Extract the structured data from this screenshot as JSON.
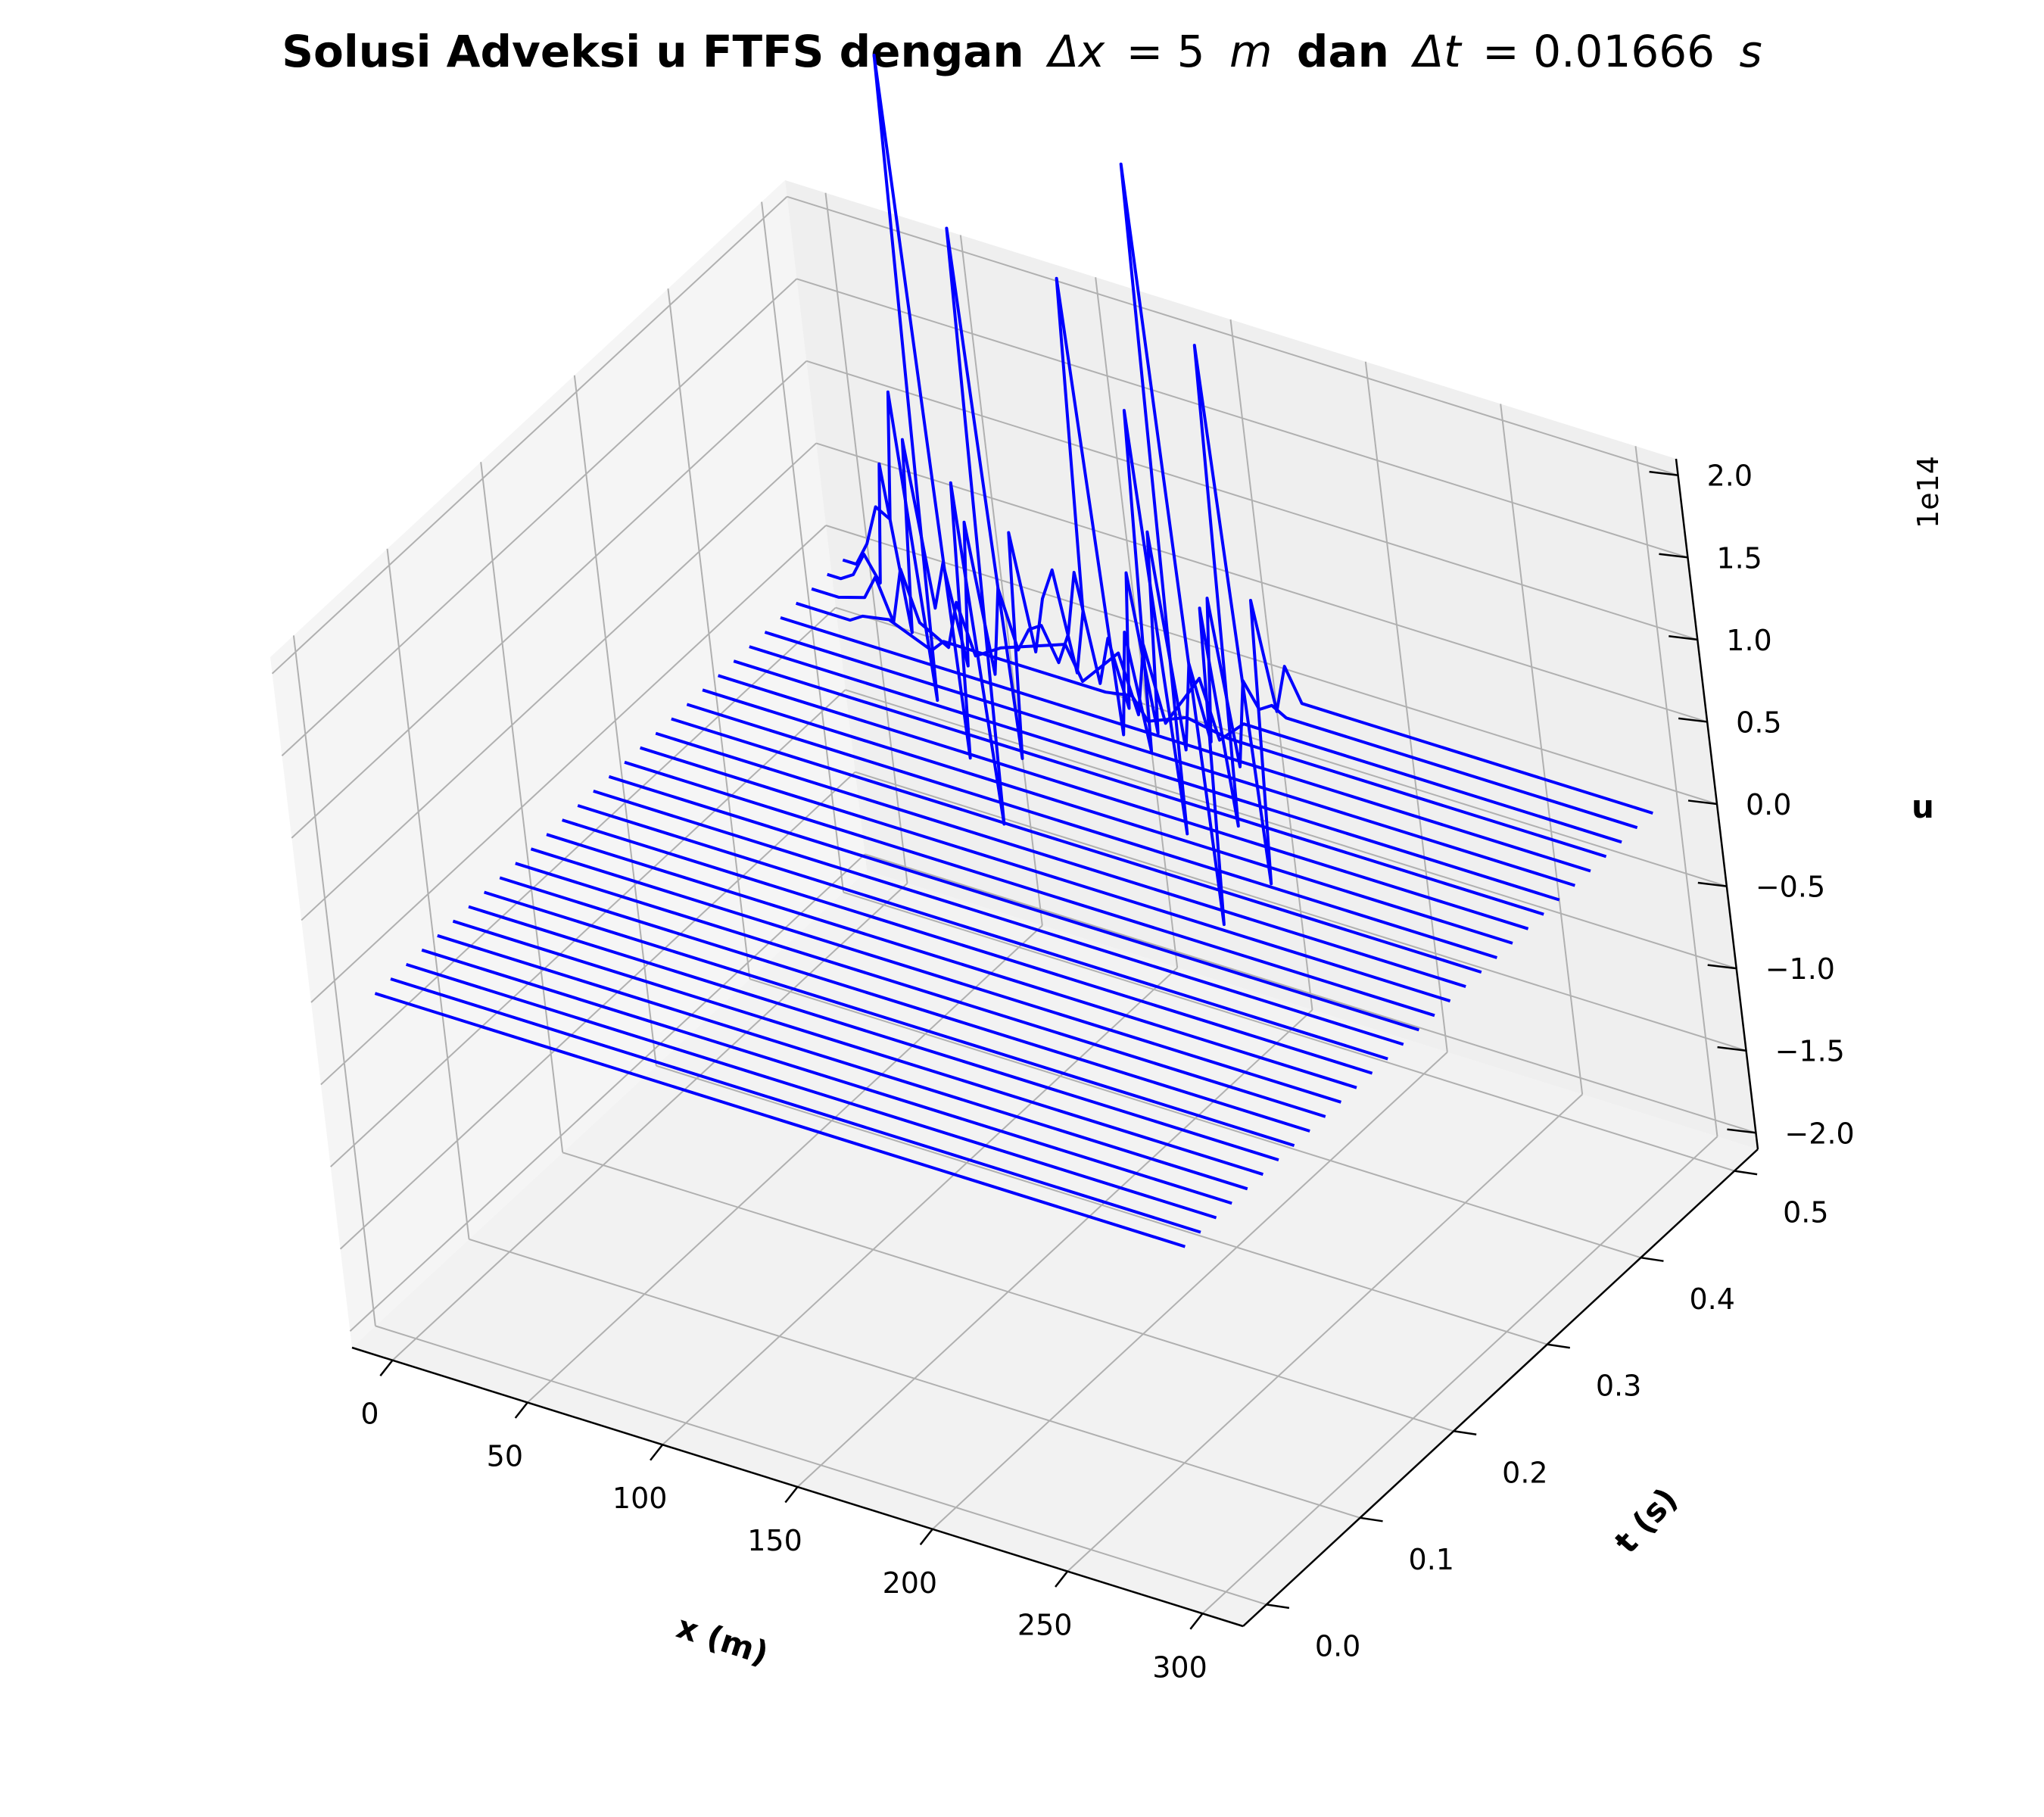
{
  "chart_data": {
    "type": "line3d",
    "title": {
      "bold_part": "Solusi Adveksi u FTFS dengan",
      "dx_symbol": "Δx",
      "dx_value": "= 5",
      "dx_unit": "m",
      "connector": "dan",
      "dt_symbol": "Δt",
      "dt_value": "= 0.01666",
      "dt_unit": "s"
    },
    "xlabel": "x (m)",
    "ylabel": "t (s)",
    "zlabel": "u",
    "z_offset_label": "1e14",
    "xlim": [
      -15,
      315
    ],
    "ylim": [
      -0.025,
      0.525
    ],
    "zlim": [
      -2.1,
      2.1
    ],
    "x_ticks": [
      "0",
      "50",
      "100",
      "150",
      "200",
      "250",
      "300"
    ],
    "t_ticks": [
      "0.0",
      "0.1",
      "0.2",
      "0.3",
      "0.4",
      "0.5"
    ],
    "z_ticks": [
      "−2.0",
      "−1.5",
      "−1.0",
      "−0.5",
      "0.0",
      "0.5",
      "1.0",
      "1.5",
      "2.0"
    ],
    "grid": true,
    "line_color": "#0000ff",
    "x_range": [
      0,
      300
    ],
    "dx": 5,
    "dt": 0.01666,
    "n_time_levels": 31,
    "baseline_u": 0,
    "unstable_profiles": [
      {
        "t": 0.5,
        "points": [
          [
            0,
            0.0
          ],
          [
            5,
            0.0
          ],
          [
            10,
            0.15
          ],
          [
            15,
            0.4
          ],
          [
            20,
            0.35
          ],
          [
            25,
            1.15
          ],
          [
            30,
            -0.7
          ],
          [
            35,
            3.25
          ],
          [
            40,
            -1.0
          ],
          [
            45,
            0.7
          ],
          [
            50,
            -1.35
          ],
          [
            55,
            2.3
          ],
          [
            60,
            -0.9
          ],
          [
            65,
            0.5
          ],
          [
            70,
            -0.2
          ],
          [
            75,
            0.15
          ],
          [
            80,
            0.35
          ],
          [
            85,
            -0.25
          ],
          [
            90,
            0.15
          ],
          [
            95,
            2.2
          ],
          [
            100,
            -0.55
          ],
          [
            105,
            0.1
          ],
          [
            110,
            -0.6
          ],
          [
            115,
            1.5
          ],
          [
            120,
            -1.05
          ],
          [
            125,
            3.05
          ],
          [
            130,
            -1.55
          ],
          [
            135,
            0.4
          ],
          [
            140,
            -0.9
          ],
          [
            145,
            2.05
          ],
          [
            150,
            -1.2
          ],
          [
            155,
            0.55
          ],
          [
            160,
            -0.1
          ],
          [
            165,
            0.2
          ],
          [
            170,
            0.0
          ]
        ]
      },
      {
        "t": 0.483,
        "points": [
          [
            0,
            0.0
          ],
          [
            5,
            0.0
          ],
          [
            10,
            0.05
          ],
          [
            15,
            0.2
          ],
          [
            20,
            0.05
          ],
          [
            25,
            0.8
          ],
          [
            30,
            -0.2
          ],
          [
            35,
            1.0
          ],
          [
            40,
            0.0
          ],
          [
            45,
            0.3
          ],
          [
            50,
            -0.3
          ],
          [
            55,
            0.6
          ],
          [
            60,
            -0.3
          ],
          [
            65,
            0.25
          ],
          [
            70,
            -0.1
          ],
          [
            75,
            0.05
          ],
          [
            80,
            0.1
          ],
          [
            85,
            -0.1
          ],
          [
            90,
            0.1
          ],
          [
            95,
            0.5
          ],
          [
            100,
            -0.15
          ],
          [
            105,
            0.15
          ],
          [
            110,
            -0.25
          ],
          [
            115,
            0.6
          ],
          [
            120,
            -0.35
          ],
          [
            125,
            0.9
          ],
          [
            130,
            -0.4
          ],
          [
            135,
            0.15
          ],
          [
            140,
            -0.3
          ],
          [
            145,
            0.6
          ],
          [
            150,
            -0.4
          ],
          [
            155,
            0.15
          ],
          [
            160,
            0.0
          ],
          [
            165,
            0.05
          ],
          [
            170,
            0.0
          ]
        ]
      },
      {
        "t": 0.467,
        "points": [
          [
            0,
            0.0
          ],
          [
            10,
            0.0
          ],
          [
            20,
            0.05
          ],
          [
            25,
            0.2
          ],
          [
            30,
            -0.05
          ],
          [
            35,
            0.3
          ],
          [
            40,
            0.0
          ],
          [
            50,
            -0.1
          ],
          [
            55,
            0.2
          ],
          [
            60,
            -0.1
          ],
          [
            70,
            0.0
          ],
          [
            95,
            0.15
          ],
          [
            100,
            -0.05
          ],
          [
            115,
            0.2
          ],
          [
            120,
            -0.15
          ],
          [
            125,
            0.3
          ],
          [
            130,
            -0.15
          ],
          [
            145,
            0.2
          ],
          [
            150,
            -0.15
          ],
          [
            160,
            0.0
          ]
        ]
      },
      {
        "t": 0.45,
        "points": [
          [
            0,
            0.0
          ],
          [
            20,
            0.0
          ],
          [
            25,
            0.05
          ],
          [
            35,
            0.08
          ],
          [
            50,
            -0.03
          ],
          [
            55,
            0.05
          ],
          [
            115,
            0.05
          ],
          [
            125,
            0.08
          ],
          [
            130,
            -0.05
          ],
          [
            145,
            0.05
          ],
          [
            160,
            0.0
          ]
        ]
      }
    ]
  }
}
